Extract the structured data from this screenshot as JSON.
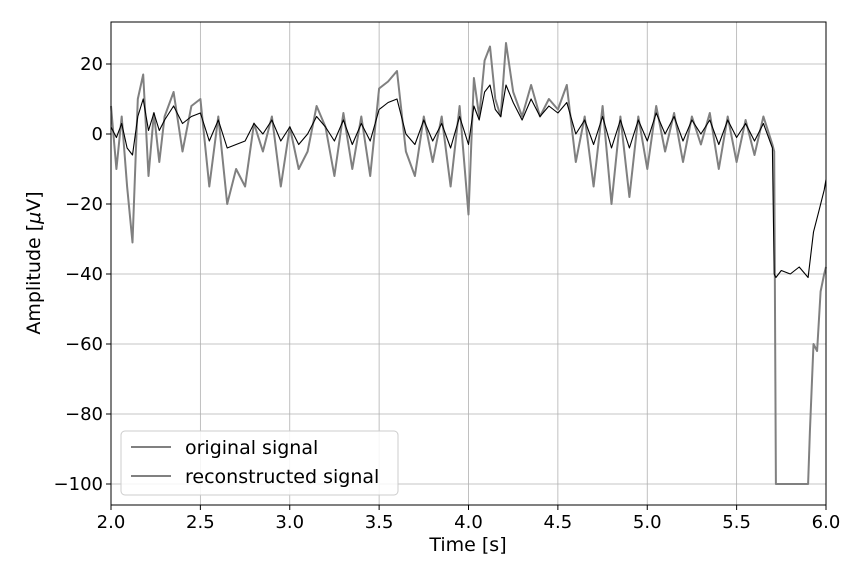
{
  "chart_data": {
    "type": "line",
    "xlabel": "Time [s]",
    "ylabel_prefix": "Amplitude [",
    "ylabel_mu": "μ",
    "ylabel_suffix": "V]",
    "xlim": [
      2.0,
      6.0
    ],
    "ylim": [
      -106,
      32
    ],
    "xticks": [
      2.0,
      2.5,
      3.0,
      3.5,
      4.0,
      4.5,
      5.0,
      5.5,
      6.0
    ],
    "xtick_labels": [
      "2.0",
      "2.5",
      "3.0",
      "3.5",
      "4.0",
      "4.5",
      "5.0",
      "5.5",
      "6.0"
    ],
    "yticks": [
      20,
      0,
      -20,
      -40,
      -60,
      -80,
      -100
    ],
    "ytick_labels": [
      "20",
      "0",
      "−20",
      "−40",
      "−60",
      "−80",
      "−100"
    ],
    "grid": true,
    "legend_position": "lower-left",
    "series": [
      {
        "name": "original signal",
        "color": "#808080",
        "x": [
          2.0,
          2.03,
          2.06,
          2.09,
          2.12,
          2.15,
          2.18,
          2.21,
          2.24,
          2.27,
          2.3,
          2.35,
          2.4,
          2.45,
          2.5,
          2.55,
          2.6,
          2.65,
          2.7,
          2.75,
          2.8,
          2.85,
          2.9,
          2.95,
          3.0,
          3.05,
          3.1,
          3.15,
          3.2,
          3.25,
          3.3,
          3.35,
          3.4,
          3.45,
          3.5,
          3.55,
          3.6,
          3.65,
          3.7,
          3.75,
          3.8,
          3.85,
          3.9,
          3.95,
          4.0,
          4.03,
          4.06,
          4.09,
          4.12,
          4.15,
          4.18,
          4.21,
          4.25,
          4.3,
          4.35,
          4.4,
          4.45,
          4.5,
          4.55,
          4.6,
          4.65,
          4.7,
          4.75,
          4.8,
          4.85,
          4.9,
          4.95,
          5.0,
          5.05,
          5.1,
          5.15,
          5.2,
          5.25,
          5.3,
          5.35,
          5.4,
          5.45,
          5.5,
          5.55,
          5.6,
          5.65,
          5.7,
          5.71,
          5.72,
          5.8,
          5.9,
          5.91,
          5.93,
          5.95,
          5.97,
          5.99,
          6.0
        ],
        "y": [
          8,
          -10,
          5,
          -15,
          -31,
          10,
          17,
          -12,
          6,
          -8,
          5,
          12,
          -5,
          8,
          10,
          -15,
          5,
          -20,
          -10,
          -15,
          3,
          -5,
          5,
          -15,
          2,
          -10,
          -5,
          8,
          2,
          -12,
          6,
          -10,
          5,
          -12,
          13,
          15,
          18,
          -5,
          -12,
          5,
          -8,
          5,
          -15,
          8,
          -23,
          16,
          5,
          21,
          25,
          10,
          5,
          26,
          12,
          5,
          14,
          5,
          10,
          7,
          14,
          -8,
          5,
          -15,
          8,
          -20,
          5,
          -18,
          5,
          -10,
          8,
          -5,
          6,
          -8,
          5,
          -3,
          6,
          -10,
          5,
          -8,
          4,
          -6,
          5,
          -3,
          -5,
          -100,
          -100,
          -100,
          -85,
          -60,
          -62,
          -45,
          -40,
          -38
        ]
      },
      {
        "name": "reconstructed signal",
        "color": "#000000",
        "x": [
          2.0,
          2.03,
          2.06,
          2.09,
          2.12,
          2.15,
          2.18,
          2.21,
          2.24,
          2.27,
          2.3,
          2.35,
          2.4,
          2.45,
          2.5,
          2.55,
          2.6,
          2.65,
          2.7,
          2.75,
          2.8,
          2.85,
          2.9,
          2.95,
          3.0,
          3.05,
          3.1,
          3.15,
          3.2,
          3.25,
          3.3,
          3.35,
          3.4,
          3.45,
          3.5,
          3.55,
          3.6,
          3.65,
          3.7,
          3.75,
          3.8,
          3.85,
          3.9,
          3.95,
          4.0,
          4.03,
          4.06,
          4.09,
          4.12,
          4.15,
          4.18,
          4.21,
          4.25,
          4.3,
          4.35,
          4.4,
          4.45,
          4.5,
          4.55,
          4.6,
          4.65,
          4.7,
          4.75,
          4.8,
          4.85,
          4.9,
          4.95,
          5.0,
          5.05,
          5.1,
          5.15,
          5.2,
          5.25,
          5.3,
          5.35,
          5.4,
          5.45,
          5.5,
          5.55,
          5.6,
          5.65,
          5.7,
          5.71,
          5.72,
          5.75,
          5.8,
          5.85,
          5.9,
          5.93,
          5.96,
          5.99,
          6.0
        ],
        "y": [
          2,
          -1,
          3,
          -4,
          -6,
          5,
          10,
          1,
          6,
          1,
          4,
          8,
          3,
          5,
          6,
          -2,
          4,
          -4,
          -3,
          -2,
          3,
          0,
          4,
          -2,
          2,
          -3,
          0,
          5,
          2,
          -2,
          4,
          -3,
          3,
          -2,
          7,
          9,
          10,
          0,
          -3,
          4,
          -2,
          3,
          -4,
          5,
          -3,
          8,
          4,
          12,
          14,
          7,
          5,
          14,
          9,
          4,
          10,
          5,
          8,
          6,
          9,
          0,
          4,
          -3,
          5,
          -4,
          4,
          -4,
          4,
          -2,
          6,
          0,
          5,
          -2,
          4,
          0,
          4,
          -3,
          4,
          -1,
          3,
          -2,
          3,
          -4,
          -40,
          -41,
          -39,
          -40,
          -38,
          -41,
          -28,
          -22,
          -16,
          -13
        ]
      }
    ]
  }
}
